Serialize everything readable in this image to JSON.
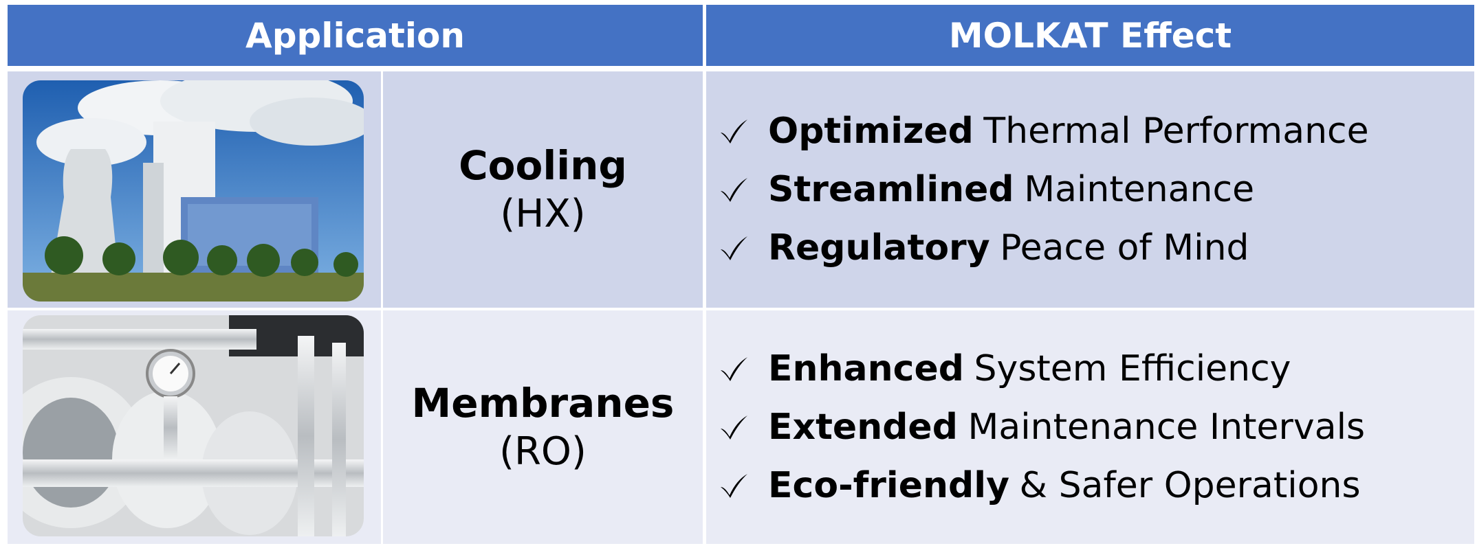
{
  "header": {
    "application": "Application",
    "effect": "MOLKAT Effect"
  },
  "rows": [
    {
      "name": "Cooling",
      "code": "(HX)",
      "effects": [
        {
          "bold": "Optimized",
          "text": "Thermal Performance"
        },
        {
          "bold": "Streamlined",
          "text": "Maintenance"
        },
        {
          "bold": "Regulatory",
          "text": "Peace of Mind"
        }
      ]
    },
    {
      "name": "Membranes",
      "code": "(RO)",
      "effects": [
        {
          "bold": "Enhanced",
          "text": "System Efficiency"
        },
        {
          "bold": "Extended",
          "text": "Maintenance Intervals"
        },
        {
          "bold": "Eco-friendly",
          "text": "& Safer Operations"
        }
      ]
    }
  ]
}
